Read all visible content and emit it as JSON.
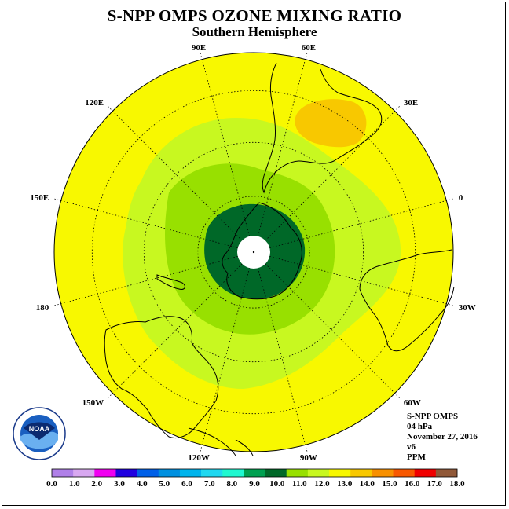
{
  "title": "S-NPP OMPS OZONE MIXING RATIO",
  "subtitle": "Southern Hemisphere",
  "longitude_labels": [
    {
      "text": "90W",
      "lon": -90
    },
    {
      "text": "60W",
      "lon": -60
    },
    {
      "text": "30W",
      "lon": -30
    },
    {
      "text": "0",
      "lon": 0
    },
    {
      "text": "30E",
      "lon": 30
    },
    {
      "text": "60E",
      "lon": 60
    },
    {
      "text": "90E",
      "lon": 90
    },
    {
      "text": "120E",
      "lon": 120
    },
    {
      "text": "150E",
      "lon": 150
    },
    {
      "text": "180",
      "lon": 180
    },
    {
      "text": "150W",
      "lon": -150
    },
    {
      "text": "120W",
      "lon": -120
    }
  ],
  "info": {
    "instrument": "S-NPP OMPS",
    "level": "04 hPa",
    "date": "November 27, 2016",
    "version": "v6",
    "units": "PPM"
  },
  "logo": {
    "text": "NOAA",
    "ring_text": "NATIONAL OCEANIC AND ATMOSPHERIC ADMINISTRATION · U.S. DEPARTMENT OF COMMERCE"
  },
  "colorbar": {
    "colors": [
      "#b080e8",
      "#d8a8f0",
      "#f000f0",
      "#2000e0",
      "#0060e8",
      "#0090e0",
      "#00b4ec",
      "#20d8f0",
      "#20f8d0",
      "#00a050",
      "#006828",
      "#98e000",
      "#c8f820",
      "#f8f800",
      "#f8c800",
      "#f89000",
      "#f85800",
      "#f00000",
      "#905838"
    ],
    "labels": [
      "0.0",
      "1.0",
      "2.0",
      "3.0",
      "4.0",
      "5.0",
      "6.0",
      "7.0",
      "8.0",
      "9.0",
      "10.0",
      "11.0",
      "12.0",
      "13.0",
      "14.0",
      "15.0",
      "16.0",
      "17.0",
      "18.0"
    ]
  }
}
